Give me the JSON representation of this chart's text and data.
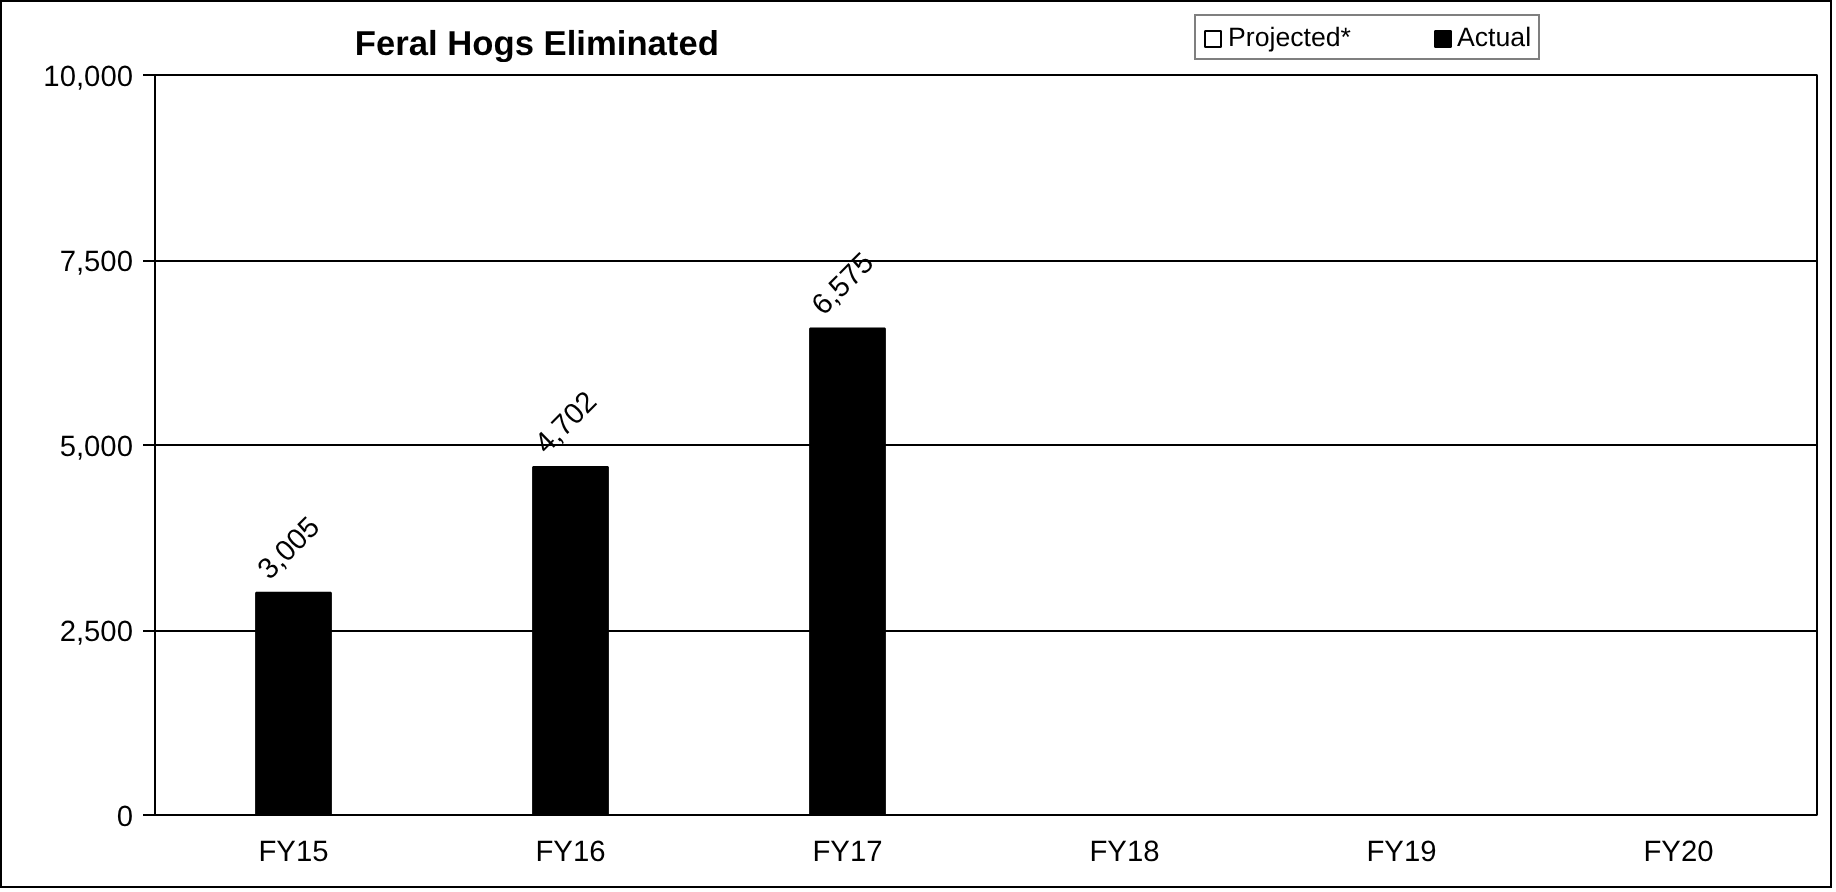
{
  "chart_data": {
    "type": "bar",
    "title": "Feral Hogs Eliminated",
    "categories": [
      "FY15",
      "FY16",
      "FY17",
      "FY18",
      "FY19",
      "FY20"
    ],
    "series": [
      {
        "name": "Projected*",
        "color": "#ffffff",
        "values": [
          null,
          null,
          null,
          null,
          null,
          null
        ]
      },
      {
        "name": "Actual",
        "color": "#000000",
        "values": [
          3005,
          4702,
          6575,
          null,
          null,
          null
        ],
        "value_labels": [
          "3,005",
          "4,702",
          "6,575",
          null,
          null,
          null
        ]
      }
    ],
    "ylim": [
      0,
      10000
    ],
    "yticks": [
      {
        "value": 0,
        "label": "0"
      },
      {
        "value": 2500,
        "label": "2,500"
      },
      {
        "value": 5000,
        "label": "5,000"
      },
      {
        "value": 7500,
        "label": "7,500"
      },
      {
        "value": 10000,
        "label": "10,000"
      }
    ],
    "grid": "y",
    "legend": "top right"
  }
}
